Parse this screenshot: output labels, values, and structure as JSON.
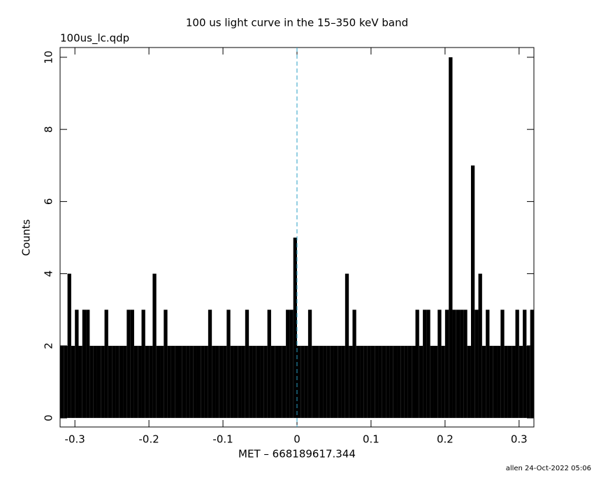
{
  "chart_data": {
    "type": "histogram",
    "title": "100 us light curve in the 15–350 keV band",
    "subtitle": "100us_lc.qdp",
    "x_label": "MET – 668189617.344",
    "y_label": "Counts",
    "footer": "allen 24-Oct-2022 05:06",
    "color": "#000000",
    "reference_line": {
      "x": 0,
      "color": "#2a9fc4"
    },
    "xlim": [
      -0.32,
      0.32
    ],
    "ylim": [
      -0.25,
      10.27
    ],
    "xticks": [
      -0.3,
      -0.2,
      -0.1,
      0,
      0.1,
      0.2,
      0.3
    ],
    "yticks": [
      0,
      2,
      4,
      6,
      8,
      10
    ],
    "bins": [
      -0.32,
      -0.315,
      -0.31,
      -0.305,
      -0.3,
      -0.295,
      -0.29,
      -0.285,
      -0.28,
      -0.275,
      -0.27,
      -0.265,
      -0.26,
      -0.255,
      -0.25,
      -0.245,
      -0.24,
      -0.235,
      -0.23,
      -0.225,
      -0.22,
      -0.215,
      -0.21,
      -0.205,
      -0.2,
      -0.195,
      -0.19,
      -0.185,
      -0.18,
      -0.175,
      -0.17,
      -0.165,
      -0.16,
      -0.155,
      -0.15,
      -0.145,
      -0.14,
      -0.135,
      -0.13,
      -0.125,
      -0.12,
      -0.115,
      -0.11,
      -0.105,
      -0.1,
      -0.095,
      -0.09,
      -0.085,
      -0.08,
      -0.075,
      -0.07,
      -0.065,
      -0.06,
      -0.055,
      -0.05,
      -0.045,
      -0.04,
      -0.035,
      -0.03,
      -0.025,
      -0.02,
      -0.015,
      -0.01,
      -0.005,
      0,
      0.005,
      0.01,
      0.015,
      0.02,
      0.025,
      0.03,
      0.035,
      0.04,
      0.045,
      0.05,
      0.055,
      0.06,
      0.065,
      0.07,
      0.075,
      0.08,
      0.085,
      0.09,
      0.095,
      0.1,
      0.105,
      0.11,
      0.115,
      0.12,
      0.125,
      0.13,
      0.135,
      0.14,
      0.145,
      0.15,
      0.155,
      0.16,
      0.165,
      0.17,
      0.175,
      0.18,
      0.185,
      0.19,
      0.195,
      0.2,
      0.205,
      0.21,
      0.215,
      0.22,
      0.225,
      0.23,
      0.235,
      0.24,
      0.245,
      0.25,
      0.255,
      0.26,
      0.265,
      0.27,
      0.275,
      0.28,
      0.285,
      0.29,
      0.295,
      0.3,
      0.305,
      0.31,
      0.315,
      0.32
    ],
    "values": [
      2,
      2,
      4,
      2,
      3,
      2,
      3,
      3,
      2,
      2,
      2,
      2,
      3,
      2,
      2,
      2,
      2,
      2,
      3,
      3,
      2,
      2,
      3,
      2,
      2,
      4,
      2,
      2,
      3,
      2,
      2,
      2,
      2,
      2,
      2,
      2,
      2,
      2,
      2,
      2,
      3,
      2,
      2,
      2,
      2,
      3,
      2,
      2,
      2,
      2,
      3,
      2,
      2,
      2,
      2,
      2,
      3,
      2,
      2,
      2,
      2,
      3,
      3,
      5,
      2,
      2,
      2,
      3,
      2,
      2,
      2,
      2,
      2,
      2,
      2,
      2,
      2,
      4,
      2,
      3,
      2,
      2,
      2,
      2,
      2,
      2,
      2,
      2,
      2,
      2,
      2,
      2,
      2,
      2,
      2,
      2,
      3,
      2,
      3,
      3,
      2,
      2,
      3,
      2,
      3,
      10,
      3,
      3,
      3,
      3,
      2,
      7,
      3,
      4,
      2,
      3,
      2,
      2,
      2,
      3,
      2,
      2,
      2,
      3,
      2,
      3,
      2,
      3
    ]
  }
}
